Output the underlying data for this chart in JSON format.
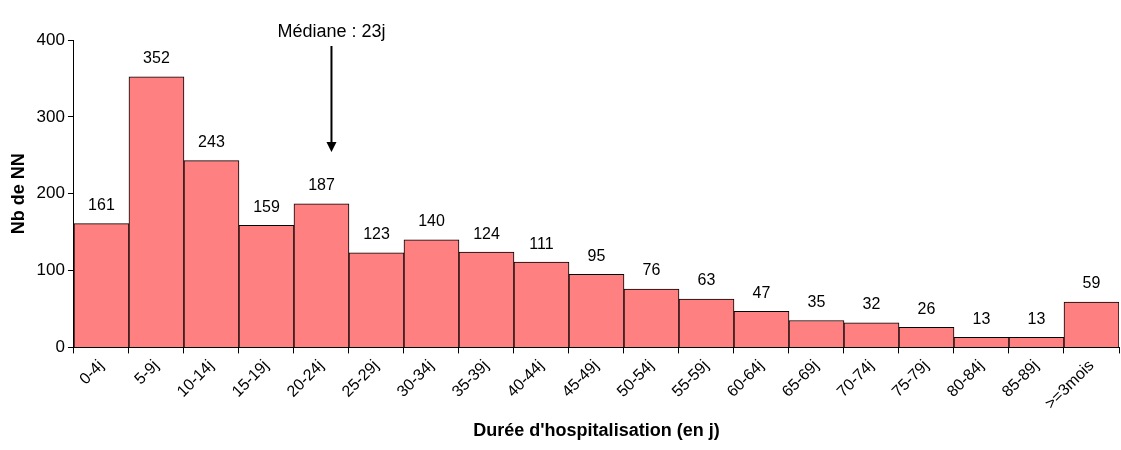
{
  "chart_data": {
    "type": "bar",
    "xlabel": "Durée d'hospitalisation (en j)",
    "ylabel": "Nb de NN",
    "categories": [
      "0-4j",
      "5-9j",
      "10-14j",
      "15-19j",
      "20-24j",
      "25-29j",
      "30-34j",
      "35-39j",
      "40-44j",
      "45-49j",
      "50-54j",
      "55-59j",
      "60-64j",
      "65-69j",
      "70-74j",
      "75-79j",
      "80-84j",
      "85-89j",
      ">=3mois"
    ],
    "values": [
      161,
      352,
      243,
      159,
      187,
      123,
      140,
      124,
      111,
      95,
      76,
      63,
      47,
      35,
      32,
      26,
      13,
      13,
      59
    ],
    "color": "#ff8080",
    "ylim": [
      0,
      400
    ],
    "yticks": [
      0,
      100,
      200,
      300,
      400
    ],
    "grid": false,
    "legend": false,
    "data_labels": true,
    "annotations": [
      "Médiane : 23j"
    ]
  }
}
